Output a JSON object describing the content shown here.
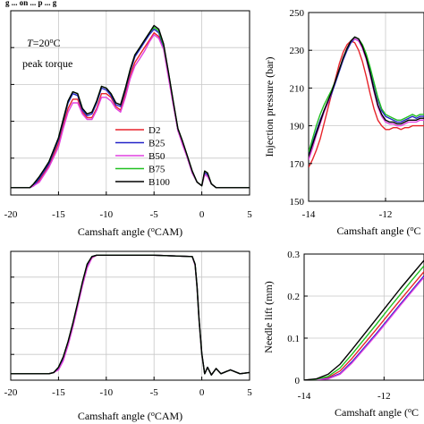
{
  "header_fragment": "g ... on ... p ... g",
  "series_names": [
    "D2",
    "B25",
    "B50",
    "B75",
    "B100"
  ],
  "colors": {
    "D2": "#e8242b",
    "B25": "#2323c8",
    "B50": "#e040e0",
    "B75": "#21c021",
    "B100": "#000000"
  },
  "chart_data": [
    {
      "type": "line",
      "title": "",
      "annotation": "T=20°C\npeak torque",
      "xlabel": "Camshaft angle (°CAM)",
      "ylabel": "",
      "xlim": [
        -20,
        5
      ],
      "ylim": [
        0,
        1
      ],
      "xticks": [
        -20,
        -15,
        -10,
        -5,
        0,
        5
      ],
      "legend": "right-center",
      "grid": true,
      "x": [
        -20,
        -18,
        -17.6,
        -17,
        -16.5,
        -16,
        -15,
        -14.5,
        -14,
        -13.5,
        -13,
        -12.5,
        -12,
        -11.5,
        -11,
        -10.5,
        -10,
        -9.5,
        -9,
        -8.5,
        -8,
        -7.5,
        -7,
        -6.5,
        -6,
        -5.5,
        -5,
        -4.5,
        -4,
        -3.5,
        -3,
        -2.5,
        -2,
        -1.5,
        -1,
        -0.5,
        0,
        0.3,
        0.6,
        1,
        1.5,
        2,
        5
      ],
      "series": [
        {
          "name": "D2",
          "values": [
            0.04,
            0.04,
            0.05,
            0.08,
            0.12,
            0.16,
            0.28,
            0.38,
            0.47,
            0.52,
            0.52,
            0.45,
            0.42,
            0.42,
            0.47,
            0.55,
            0.55,
            0.53,
            0.48,
            0.46,
            0.55,
            0.65,
            0.72,
            0.76,
            0.8,
            0.84,
            0.88,
            0.86,
            0.8,
            0.65,
            0.5,
            0.35,
            0.28,
            0.2,
            0.12,
            0.07,
            0.05,
            0.12,
            0.11,
            0.06,
            0.04,
            0.04,
            0.04
          ]
        },
        {
          "name": "B25",
          "values": [
            0.04,
            0.04,
            0.05,
            0.09,
            0.13,
            0.17,
            0.3,
            0.4,
            0.5,
            0.55,
            0.54,
            0.46,
            0.43,
            0.44,
            0.5,
            0.58,
            0.57,
            0.54,
            0.49,
            0.48,
            0.57,
            0.67,
            0.75,
            0.79,
            0.83,
            0.87,
            0.9,
            0.88,
            0.8,
            0.66,
            0.5,
            0.35,
            0.28,
            0.2,
            0.12,
            0.07,
            0.05,
            0.12,
            0.11,
            0.06,
            0.04,
            0.04,
            0.04
          ]
        },
        {
          "name": "B50",
          "values": [
            0.04,
            0.04,
            0.05,
            0.07,
            0.11,
            0.15,
            0.26,
            0.36,
            0.45,
            0.5,
            0.5,
            0.44,
            0.41,
            0.41,
            0.46,
            0.53,
            0.53,
            0.51,
            0.47,
            0.45,
            0.53,
            0.63,
            0.7,
            0.74,
            0.78,
            0.83,
            0.87,
            0.85,
            0.79,
            0.64,
            0.49,
            0.35,
            0.27,
            0.2,
            0.12,
            0.07,
            0.05,
            0.11,
            0.1,
            0.06,
            0.04,
            0.04,
            0.04
          ]
        },
        {
          "name": "B75",
          "values": [
            0.04,
            0.04,
            0.06,
            0.1,
            0.14,
            0.18,
            0.31,
            0.41,
            0.51,
            0.56,
            0.55,
            0.47,
            0.44,
            0.45,
            0.51,
            0.59,
            0.58,
            0.55,
            0.5,
            0.49,
            0.58,
            0.68,
            0.76,
            0.8,
            0.84,
            0.88,
            0.91,
            0.89,
            0.81,
            0.67,
            0.51,
            0.36,
            0.29,
            0.21,
            0.13,
            0.07,
            0.05,
            0.13,
            0.12,
            0.06,
            0.04,
            0.04,
            0.04
          ]
        },
        {
          "name": "B100",
          "values": [
            0.04,
            0.04,
            0.06,
            0.1,
            0.14,
            0.18,
            0.31,
            0.41,
            0.51,
            0.56,
            0.55,
            0.47,
            0.44,
            0.45,
            0.51,
            0.59,
            0.58,
            0.55,
            0.5,
            0.49,
            0.58,
            0.68,
            0.76,
            0.8,
            0.84,
            0.88,
            0.92,
            0.9,
            0.82,
            0.67,
            0.51,
            0.36,
            0.29,
            0.21,
            0.13,
            0.07,
            0.05,
            0.13,
            0.12,
            0.06,
            0.04,
            0.04,
            0.04
          ]
        }
      ]
    },
    {
      "type": "line",
      "title": "",
      "xlabel": "Camshaft angle (°C",
      "ylabel": "Injection pressure  (bar)",
      "xlim": [
        -14,
        -11
      ],
      "ylim": [
        150,
        250
      ],
      "xticks": [
        -14,
        -12
      ],
      "yticks": [
        150,
        170,
        190,
        210,
        230,
        250
      ],
      "grid": true,
      "x": [
        -14,
        -13.9,
        -13.8,
        -13.7,
        -13.6,
        -13.5,
        -13.4,
        -13.3,
        -13.2,
        -13.1,
        -13.0,
        -12.9,
        -12.8,
        -12.7,
        -12.6,
        -12.5,
        -12.4,
        -12.3,
        -12.2,
        -12.1,
        -12.0,
        -11.9,
        -11.8,
        -11.7,
        -11.6,
        -11.5,
        -11.4,
        -11.3,
        -11.2,
        -11.1,
        -11.0
      ],
      "series": [
        {
          "name": "D2",
          "values": [
            168,
            172,
            177,
            183,
            191,
            199,
            207,
            215,
            223,
            229,
            233,
            235,
            234,
            230,
            224,
            216,
            207,
            199,
            193,
            190,
            188,
            188,
            189,
            189,
            188,
            189,
            189,
            190,
            190,
            190,
            190
          ]
        },
        {
          "name": "B25",
          "values": [
            175,
            181,
            187,
            193,
            198,
            202,
            207,
            213,
            219,
            225,
            230,
            234,
            236,
            235,
            232,
            227,
            220,
            212,
            204,
            198,
            195,
            194,
            193,
            192,
            192,
            193,
            194,
            195,
            194,
            195,
            195
          ]
        },
        {
          "name": "B50",
          "values": [
            172,
            178,
            185,
            191,
            197,
            202,
            208,
            214,
            220,
            226,
            231,
            235,
            236,
            235,
            231,
            225,
            217,
            208,
            200,
            195,
            192,
            191,
            191,
            190,
            190,
            191,
            192,
            192,
            192,
            193,
            193
          ]
        },
        {
          "name": "B75",
          "values": [
            176,
            183,
            190,
            196,
            201,
            205,
            209,
            214,
            220,
            226,
            231,
            235,
            237,
            236,
            233,
            228,
            221,
            213,
            205,
            199,
            196,
            195,
            194,
            193,
            193,
            194,
            195,
            196,
            195,
            196,
            196
          ]
        },
        {
          "name": "B100",
          "values": [
            174,
            180,
            186,
            192,
            198,
            203,
            208,
            214,
            220,
            226,
            231,
            235,
            237,
            236,
            232,
            226,
            218,
            209,
            201,
            196,
            193,
            192,
            192,
            191,
            191,
            192,
            193,
            193,
            193,
            194,
            194
          ]
        }
      ]
    },
    {
      "type": "line",
      "title": "",
      "xlabel": "Camshaft angle (°CAM)",
      "ylabel": "",
      "xlim": [
        -20,
        5
      ],
      "ylim": [
        0,
        1
      ],
      "xticks": [
        -20,
        -15,
        -10,
        -5,
        0,
        5
      ],
      "grid": true,
      "x": [
        -20,
        -16,
        -15.5,
        -15,
        -14.5,
        -14,
        -13.5,
        -13,
        -12.5,
        -12,
        -11.5,
        -11,
        -10.5,
        -10,
        -5,
        -1,
        -0.7,
        -0.5,
        -0.3,
        0,
        0.3,
        0.6,
        1,
        1.5,
        2,
        3,
        4,
        5
      ],
      "series": [
        {
          "name": "D2",
          "values": [
            0.05,
            0.05,
            0.06,
            0.09,
            0.16,
            0.28,
            0.42,
            0.58,
            0.74,
            0.88,
            0.95,
            0.97,
            0.97,
            0.97,
            0.97,
            0.96,
            0.9,
            0.72,
            0.48,
            0.2,
            0.05,
            0.1,
            0.04,
            0.09,
            0.05,
            0.08,
            0.05,
            0.06
          ]
        },
        {
          "name": "B25",
          "values": [
            0.05,
            0.05,
            0.06,
            0.09,
            0.17,
            0.29,
            0.43,
            0.59,
            0.75,
            0.89,
            0.96,
            0.97,
            0.97,
            0.97,
            0.97,
            0.96,
            0.9,
            0.72,
            0.48,
            0.2,
            0.05,
            0.1,
            0.04,
            0.09,
            0.05,
            0.08,
            0.05,
            0.06
          ]
        },
        {
          "name": "B50",
          "values": [
            0.05,
            0.05,
            0.06,
            0.08,
            0.15,
            0.27,
            0.41,
            0.57,
            0.73,
            0.87,
            0.95,
            0.97,
            0.97,
            0.97,
            0.97,
            0.96,
            0.89,
            0.71,
            0.47,
            0.19,
            0.05,
            0.1,
            0.04,
            0.09,
            0.05,
            0.08,
            0.05,
            0.06
          ]
        },
        {
          "name": "B75",
          "values": [
            0.05,
            0.05,
            0.06,
            0.1,
            0.18,
            0.3,
            0.44,
            0.6,
            0.76,
            0.9,
            0.96,
            0.97,
            0.97,
            0.97,
            0.97,
            0.96,
            0.9,
            0.72,
            0.48,
            0.2,
            0.05,
            0.1,
            0.04,
            0.09,
            0.05,
            0.08,
            0.05,
            0.06
          ]
        },
        {
          "name": "B100",
          "values": [
            0.05,
            0.05,
            0.06,
            0.1,
            0.18,
            0.3,
            0.44,
            0.6,
            0.76,
            0.9,
            0.96,
            0.97,
            0.97,
            0.97,
            0.97,
            0.96,
            0.9,
            0.73,
            0.49,
            0.21,
            0.05,
            0.1,
            0.04,
            0.09,
            0.05,
            0.08,
            0.05,
            0.06
          ]
        }
      ]
    },
    {
      "type": "line",
      "title": "",
      "xlabel": "Camshaft angle (°C",
      "ylabel": "Needle lift  (mm)",
      "xlim": [
        -14,
        -11
      ],
      "ylim": [
        0,
        0.3
      ],
      "xticks": [
        -14,
        -12
      ],
      "yticks": [
        0,
        0.1,
        0.2,
        0.3
      ],
      "grid": true,
      "x": [
        -14,
        -13.7,
        -13.4,
        -13.1,
        -12.8,
        -12.5,
        -12.2,
        -11.9,
        -11.6,
        -11.3,
        -11.0
      ],
      "series": [
        {
          "name": "D2",
          "values": [
            0.0,
            0.002,
            0.006,
            0.022,
            0.052,
            0.086,
            0.12,
            0.155,
            0.19,
            0.224,
            0.258
          ]
        },
        {
          "name": "B25",
          "values": [
            0.0,
            0.001,
            0.004,
            0.016,
            0.044,
            0.077,
            0.11,
            0.145,
            0.18,
            0.214,
            0.248
          ]
        },
        {
          "name": "B50",
          "values": [
            0.0,
            0.001,
            0.003,
            0.014,
            0.041,
            0.074,
            0.107,
            0.142,
            0.177,
            0.211,
            0.245
          ]
        },
        {
          "name": "B75",
          "values": [
            0.0,
            0.002,
            0.009,
            0.029,
            0.062,
            0.097,
            0.132,
            0.168,
            0.203,
            0.238,
            0.272
          ]
        },
        {
          "name": "B100",
          "values": [
            0.0,
            0.003,
            0.014,
            0.038,
            0.073,
            0.109,
            0.145,
            0.181,
            0.217,
            0.251,
            0.285
          ]
        }
      ]
    }
  ]
}
